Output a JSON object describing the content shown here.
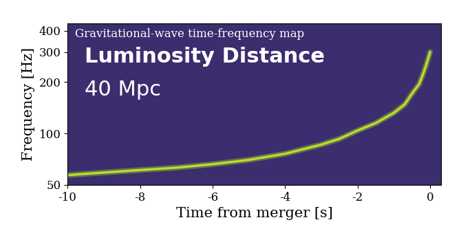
{
  "chart_data": {
    "type": "line",
    "title": "Gravitational-wave time-frequency map",
    "annotations": [
      "Luminosity Distance",
      "40 Mpc"
    ],
    "x_label": "Time from merger [s]",
    "y_label": "Frequency [Hz]",
    "x": [
      -10,
      -9,
      -8,
      -7,
      -6,
      -5,
      -4,
      -3,
      -2.5,
      -2,
      -1.5,
      -1,
      -0.7,
      -0.5,
      -0.3,
      -0.2,
      -0.1,
      0
    ],
    "values": [
      57,
      59,
      61,
      63,
      66,
      70,
      76,
      86,
      93,
      104,
      115,
      132,
      148,
      171,
      195,
      221,
      255,
      300
    ],
    "color": "#b8de29",
    "xlim": [
      -10,
      0.3
    ],
    "ylim": [
      50,
      443
    ],
    "xticks": [
      -10,
      -8,
      -6,
      -4,
      -2,
      0
    ],
    "yticks": [
      50,
      100,
      200,
      300,
      400
    ],
    "log": "y",
    "grid": false
  }
}
